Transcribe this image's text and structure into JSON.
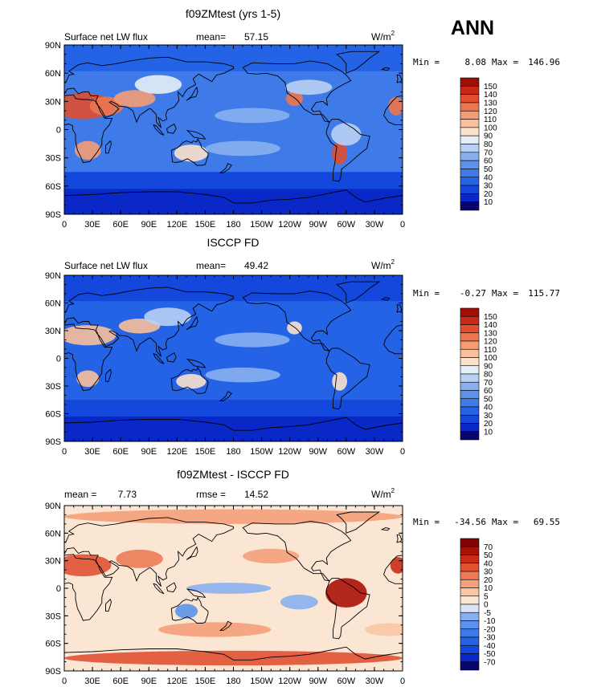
{
  "header": {
    "season": "ANN"
  },
  "panels": [
    {
      "title": "f09ZMtest (yrs 1-5)",
      "left_label": "Surface net LW flux",
      "stat_label": "mean=",
      "stat_value": "57.15",
      "units": "W/m",
      "units_sup": "2",
      "min_label": "Min =",
      "min_value": "8.08",
      "max_label": "Max =",
      "max_value": "146.96",
      "colorbar_ticks": [
        "150",
        "140",
        "130",
        "120",
        "110",
        "100",
        "90",
        "80",
        "70",
        "60",
        "50",
        "40",
        "30",
        "20",
        "10"
      ]
    },
    {
      "title": "ISCCP FD",
      "left_label": "Surface net LW flux",
      "stat_label": "mean=",
      "stat_value": "49.42",
      "units": "W/m",
      "units_sup": "2",
      "min_label": "Min =",
      "min_value": "-0.27",
      "max_label": "Max =",
      "max_value": "115.77",
      "colorbar_ticks": [
        "150",
        "140",
        "130",
        "120",
        "110",
        "100",
        "90",
        "80",
        "70",
        "60",
        "50",
        "40",
        "30",
        "20",
        "10"
      ]
    },
    {
      "title": "f09ZMtest - ISCCP FD",
      "left_label": "mean =",
      "left_value": "7.73",
      "stat_label": "rmse =",
      "stat_value": "14.52",
      "units": "W/m",
      "units_sup": "2",
      "min_label": "Min =",
      "min_value": "-34.56",
      "max_label": "Max =",
      "max_value": "69.55",
      "colorbar_ticks": [
        "70",
        "50",
        "40",
        "30",
        "20",
        "10",
        "5",
        "0",
        "-5",
        "-10",
        "-20",
        "-30",
        "-40",
        "-50",
        "-70"
      ]
    }
  ],
  "chart_data": [
    {
      "type": "heatmap",
      "title": "f09ZMtest (yrs 1-5)",
      "variable": "Surface net LW flux",
      "units": "W/m2",
      "mean": 57.15,
      "min": 8.08,
      "max": 146.96,
      "x_tick_labels": [
        "0",
        "30E",
        "60E",
        "90E",
        "120E",
        "150E",
        "180",
        "150W",
        "120W",
        "90W",
        "60W",
        "30W",
        "0"
      ],
      "y_tick_labels": [
        "90N",
        "60N",
        "30N",
        "0",
        "30S",
        "60S",
        "90S"
      ],
      "levels": [
        10,
        20,
        30,
        40,
        50,
        60,
        70,
        80,
        90,
        100,
        110,
        120,
        130,
        140,
        150
      ],
      "colors": [
        "#06066e",
        "#0a28c8",
        "#1448dc",
        "#2462e6",
        "#3e7ae8",
        "#5c92ec",
        "#88b0f0",
        "#b8d0f4",
        "#e6eef8",
        "#fbe2cc",
        "#f8c09c",
        "#f49c74",
        "#ec7650",
        "#e04e30",
        "#c82814",
        "#a00e08"
      ]
    },
    {
      "type": "heatmap",
      "title": "ISCCP FD",
      "variable": "Surface net LW flux",
      "units": "W/m2",
      "mean": 49.42,
      "min": -0.27,
      "max": 115.77,
      "x_tick_labels": [
        "0",
        "30E",
        "60E",
        "90E",
        "120E",
        "150E",
        "180",
        "150W",
        "120W",
        "90W",
        "60W",
        "30W",
        "0"
      ],
      "y_tick_labels": [
        "90N",
        "60N",
        "30N",
        "0",
        "30S",
        "60S",
        "90S"
      ],
      "levels": [
        10,
        20,
        30,
        40,
        50,
        60,
        70,
        80,
        90,
        100,
        110,
        120,
        130,
        140,
        150
      ],
      "colors": [
        "#06066e",
        "#0a28c8",
        "#1448dc",
        "#2462e6",
        "#3e7ae8",
        "#5c92ec",
        "#88b0f0",
        "#b8d0f4",
        "#e6eef8",
        "#fbe2cc",
        "#f8c09c",
        "#f49c74",
        "#ec7650",
        "#e04e30",
        "#c82814",
        "#a00e08"
      ]
    },
    {
      "type": "heatmap",
      "title": "f09ZMtest - ISCCP FD",
      "variable": "Surface net LW flux",
      "units": "W/m2",
      "mean": 7.73,
      "rmse": 14.52,
      "min": -34.56,
      "max": 69.55,
      "x_tick_labels": [
        "0",
        "30E",
        "60E",
        "90E",
        "120E",
        "150E",
        "180",
        "150W",
        "120W",
        "90W",
        "60W",
        "30W",
        "0"
      ],
      "y_tick_labels": [
        "90N",
        "60N",
        "30N",
        "0",
        "30S",
        "60S",
        "90S"
      ],
      "levels": [
        -70,
        -50,
        -40,
        -30,
        -20,
        -10,
        -5,
        0,
        5,
        10,
        20,
        30,
        40,
        50,
        70
      ],
      "colors": [
        "#06066e",
        "#0a28c8",
        "#1448dc",
        "#2462e6",
        "#3e7ae8",
        "#5c92ec",
        "#88b0f0",
        "#d8e4f6",
        "#fbe6d4",
        "#f8c6a4",
        "#f4a07a",
        "#ec7a56",
        "#e05232",
        "#c82c16",
        "#a81208",
        "#800404"
      ]
    }
  ]
}
